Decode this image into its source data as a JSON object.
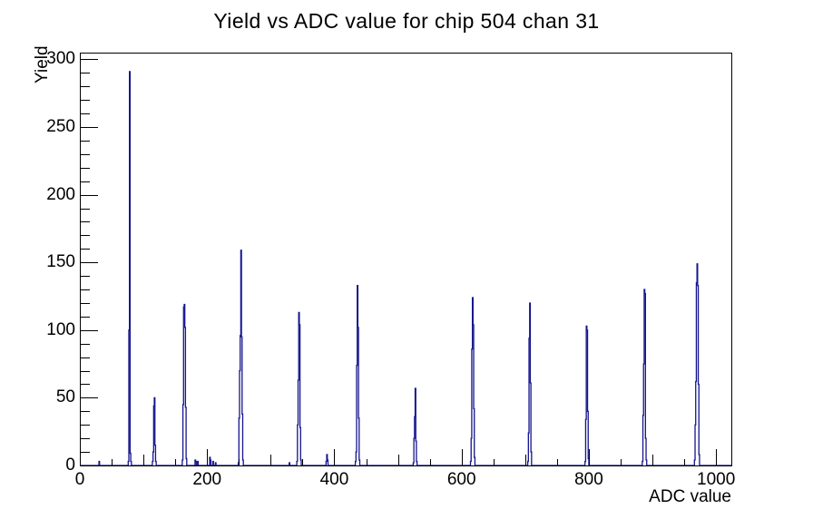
{
  "page": {
    "background_color": "#ffffff",
    "frame_color": "#000000"
  },
  "chart_data": {
    "type": "bar",
    "title": "Yield vs ADC value for chip 504 chan 31",
    "xlabel": "ADC value",
    "ylabel": "Yield",
    "xlim": [
      0,
      1024
    ],
    "ylim": [
      0,
      305
    ],
    "x_major_ticks": [
      0,
      200,
      400,
      600,
      800,
      1000
    ],
    "x_medium_tick_step": 100,
    "x_minor_tick_step": 50,
    "y_major_ticks": [
      0,
      50,
      100,
      150,
      200,
      250,
      300
    ],
    "y_minor_tick_step": 10,
    "grid": false,
    "legend": false,
    "line_color": "#14148c",
    "bin_width_adc": 1,
    "peaks": [
      {
        "start_adc": 30,
        "bin_heights": [
          3
        ]
      },
      {
        "start_adc": 76,
        "bin_heights": [
          3,
          100,
          291,
          9,
          3
        ]
      },
      {
        "start_adc": 114,
        "bin_heights": [
          3,
          10,
          44,
          50,
          15,
          3
        ]
      },
      {
        "start_adc": 161,
        "bin_heights": [
          4,
          45,
          117,
          119,
          102,
          43,
          5
        ]
      },
      {
        "start_adc": 181,
        "bin_heights": [
          4,
          3
        ]
      },
      {
        "start_adc": 185,
        "bin_heights": [
          3
        ]
      },
      {
        "start_adc": 204,
        "bin_heights": [
          6,
          4
        ]
      },
      {
        "start_adc": 209,
        "bin_heights": [
          3
        ]
      },
      {
        "start_adc": 213,
        "bin_heights": [
          2
        ]
      },
      {
        "start_adc": 249,
        "bin_heights": [
          2,
          35,
          70,
          96,
          159,
          95,
          38,
          4
        ]
      },
      {
        "start_adc": 329,
        "bin_heights": [
          2
        ]
      },
      {
        "start_adc": 341,
        "bin_heights": [
          3,
          30,
          63,
          113,
          104,
          28,
          4
        ]
      },
      {
        "start_adc": 387,
        "bin_heights": [
          3,
          8,
          4
        ]
      },
      {
        "start_adc": 433,
        "bin_heights": [
          3,
          10,
          74,
          133,
          102,
          35,
          4
        ]
      },
      {
        "start_adc": 524,
        "bin_heights": [
          2,
          20,
          36,
          57,
          18,
          3
        ]
      },
      {
        "start_adc": 614,
        "bin_heights": [
          3,
          20,
          86,
          124,
          104,
          42,
          6
        ]
      },
      {
        "start_adc": 704,
        "bin_heights": [
          3,
          24,
          94,
          120,
          61,
          10
        ]
      },
      {
        "start_adc": 794,
        "bin_heights": [
          3,
          34,
          103,
          100,
          40,
          5
        ]
      },
      {
        "start_adc": 884,
        "bin_heights": [
          3,
          37,
          75,
          130,
          127,
          20,
          4
        ]
      },
      {
        "start_adc": 966,
        "bin_heights": [
          4,
          30,
          62,
          135,
          149,
          133,
          60,
          8
        ]
      }
    ]
  }
}
